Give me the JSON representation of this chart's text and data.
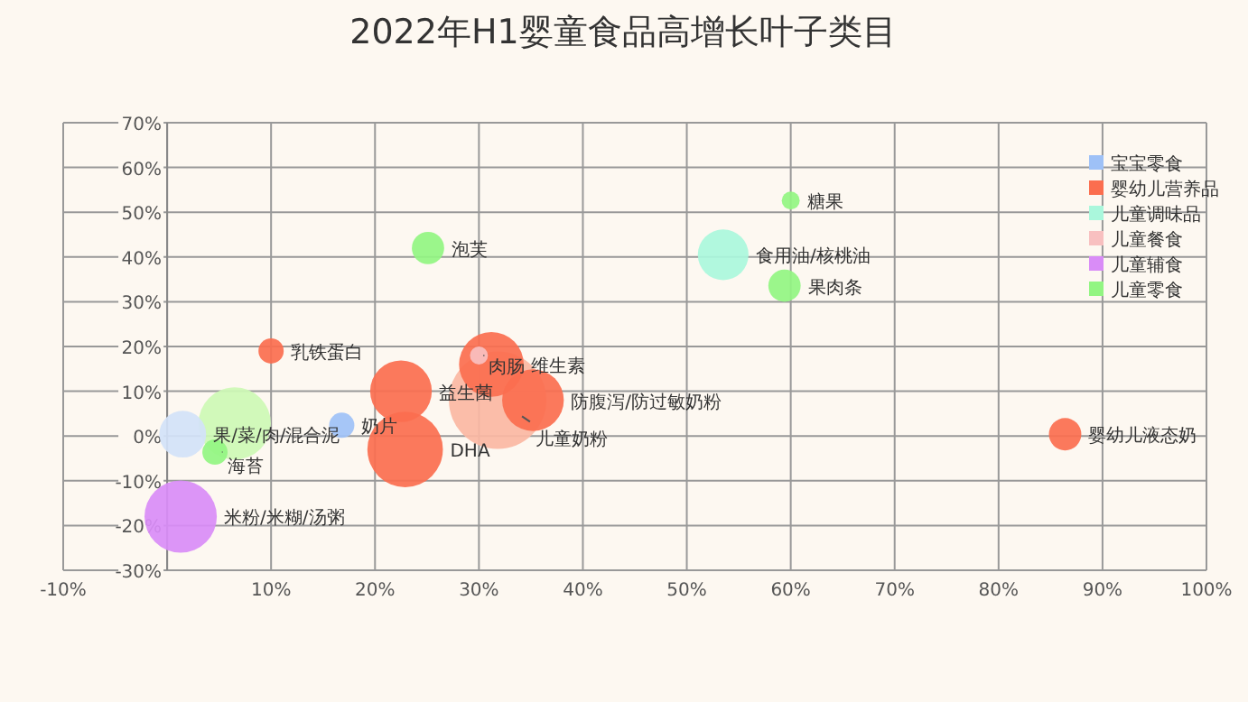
{
  "chart_data": {
    "type": "bubble",
    "title": "2022年H1婴童食品高增长叶子类目",
    "xlim": [
      -10,
      100
    ],
    "ylim": [
      -30,
      70
    ],
    "xticks": [
      {
        "value": -10,
        "label": "-10%"
      },
      {
        "value": 0,
        "label": null
      },
      {
        "value": 10,
        "label": "10%"
      },
      {
        "value": 20,
        "label": "20%"
      },
      {
        "value": 30,
        "label": "30%"
      },
      {
        "value": 40,
        "label": "40%"
      },
      {
        "value": 50,
        "label": "50%"
      },
      {
        "value": 60,
        "label": "60%"
      },
      {
        "value": 70,
        "label": "70%"
      },
      {
        "value": 80,
        "label": "80%"
      },
      {
        "value": 90,
        "label": "90%"
      },
      {
        "value": 100,
        "label": "100%"
      }
    ],
    "yticks": [
      {
        "value": -30,
        "label": "-30%"
      },
      {
        "value": -20,
        "label": "-20%"
      },
      {
        "value": -10,
        "label": "-10%"
      },
      {
        "value": 0,
        "label": "0%"
      },
      {
        "value": 10,
        "label": "10%"
      },
      {
        "value": 20,
        "label": "20%"
      },
      {
        "value": 30,
        "label": "30%"
      },
      {
        "value": 40,
        "label": "40%"
      },
      {
        "value": 50,
        "label": "50%"
      },
      {
        "value": 60,
        "label": "60%"
      },
      {
        "value": 70,
        "label": "70%"
      }
    ],
    "grid": true,
    "legend": "top right",
    "series": [
      {
        "name": "宝宝零食",
        "color": "#9ec1f7",
        "colors": [
          "#9ec1f7",
          "#d3e2f8"
        ],
        "x": [
          16.8,
          1.5
        ],
        "values": [
          2.4,
          0.4
        ],
        "sizes": [
          0.067,
          0.23
        ]
      },
      {
        "name": "婴幼儿营养品",
        "color": "#fb6e4f",
        "colors": [
          "#fb6e4f",
          "#fb6e4f",
          "#fb6e4f",
          "#fb6e4f",
          "#fb6e4f",
          "#fbb7a3",
          "#fb6e4f"
        ],
        "x": [
          10,
          22.5,
          22.9,
          31.2,
          35.2,
          31.8,
          86.4
        ],
        "values": [
          19,
          10,
          -3,
          16,
          8,
          8,
          0.4
        ],
        "sizes": [
          0.067,
          0.4,
          0.6,
          0.44,
          0.4,
          1,
          0.11
        ]
      },
      {
        "name": "儿童调味品",
        "color": "#aaf7dc",
        "x": [
          53.5
        ],
        "values": [
          40.5
        ],
        "sizes": [
          0.27
        ]
      },
      {
        "name": "儿童餐食",
        "color": "#f8c0c0",
        "x": [
          30
        ],
        "values": [
          18
        ],
        "sizes": [
          0.034
        ]
      },
      {
        "name": "儿童辅食",
        "color": "#d98cf7",
        "x": [
          1.3
        ],
        "values": [
          -18
        ],
        "sizes": [
          0.55
        ]
      },
      {
        "name": "儿童零食",
        "color": "#92f582",
        "colors": [
          "#92f582",
          "#92f582",
          "#92f582",
          "#92f582",
          "#cdf9b5"
        ],
        "x": [
          25.1,
          60,
          59.4,
          4.6,
          6.5
        ],
        "values": [
          42,
          52.6,
          33.6,
          -3.6,
          2.8
        ],
        "sizes": [
          0.11,
          0.034,
          0.11,
          0.067,
          0.55
        ]
      }
    ],
    "annotations": [
      {
        "text": "奶片",
        "x": 16.8,
        "y": 2.4
      },
      {
        "text": "果/菜/肉/混合泥",
        "x": 1.5,
        "y": 0.4
      },
      {
        "text": "乳铁蛋白",
        "x": 10,
        "y": 19
      },
      {
        "text": "益生菌",
        "x": 22.5,
        "y": 10
      },
      {
        "text": "DHA",
        "x": 22.9,
        "y": -3
      },
      {
        "text": "维生素",
        "x": 31.2,
        "y": 16
      },
      {
        "text": "防腹泻/防过敏奶粉",
        "x": 35.2,
        "y": 8
      },
      {
        "text": "儿童奶粉",
        "x": 31.8,
        "y": 8
      },
      {
        "text": "婴幼儿液态奶",
        "x": 86.4,
        "y": 0.4
      },
      {
        "text": "食用油/核桃油",
        "x": 53.5,
        "y": 40.5
      },
      {
        "text": "肉肠",
        "x": 30,
        "y": 18
      },
      {
        "text": "米粉/米糊/汤粥",
        "x": 1.3,
        "y": -18
      },
      {
        "text": "泡芙",
        "x": 25.1,
        "y": 42
      },
      {
        "text": "糖果",
        "x": 60,
        "y": 52.6
      },
      {
        "text": "果肉条",
        "x": 59.4,
        "y": 33.6
      },
      {
        "text": "海苔",
        "x": 4.6,
        "y": -3.6
      }
    ]
  }
}
